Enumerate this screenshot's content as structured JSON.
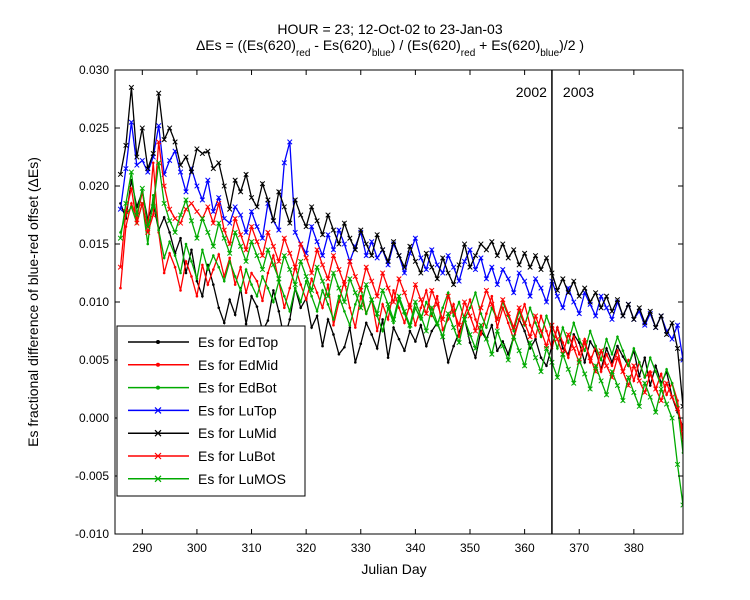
{
  "chart_data": {
    "type": "line",
    "title_line1": "HOUR = 23; 12-Oct-02 to 23-Jan-03",
    "title_line2": {
      "prefix": "ΔEs = ((Es(620)",
      "sub1": "red",
      "mid1": " - Es(620)",
      "sub2": "blue",
      "mid2": ") / (Es(620)",
      "sub3": "red",
      "mid3": " + Es(620)",
      "sub4": "blue",
      "suffix": ")/2  )"
    },
    "xlabel": "Julian Day",
    "ylabel": "Es fractional difference of blue-red offset (ΔEs)",
    "xlim": [
      285,
      389
    ],
    "ylim": [
      -0.01,
      0.03
    ],
    "xticks": [
      290,
      300,
      310,
      320,
      330,
      340,
      350,
      360,
      370,
      380
    ],
    "yticks": [
      -0.01,
      -0.005,
      0.0,
      0.005,
      0.01,
      0.015,
      0.02,
      0.025,
      0.03
    ],
    "ytick_labels": [
      "-0.010",
      "-0.005",
      "0.000",
      "0.005",
      "0.010",
      "0.015",
      "0.020",
      "0.025",
      "0.030"
    ],
    "vline": {
      "x": 365,
      "label_left": "2002",
      "label_right": "2003"
    },
    "legend_position": "lower-left",
    "series": [
      {
        "name": "Es for EdTop",
        "color": "#000000",
        "marker": "dot",
        "values": [
          0.0185,
          0.0172,
          0.0205,
          0.0182,
          0.0195,
          0.0171,
          0.0185,
          0.0162,
          0.0173,
          0.016,
          0.0142,
          0.0155,
          0.0125,
          0.0145,
          0.0118,
          0.0105,
          0.0132,
          0.0115,
          0.0095,
          0.0082,
          0.0102,
          0.0089,
          0.0112,
          0.0081,
          0.0105,
          0.0096,
          0.0075,
          0.0084,
          0.011,
          0.0092,
          0.0068,
          0.0085,
          0.0112,
          0.0095,
          0.0103,
          0.0078,
          0.0088,
          0.0062,
          0.0085,
          0.0072,
          0.0055,
          0.0061,
          0.0078,
          0.0048,
          0.0064,
          0.0082,
          0.0072,
          0.006,
          0.0085,
          0.0052,
          0.0078,
          0.0068,
          0.0058,
          0.0075,
          0.0066,
          0.008,
          0.0062,
          0.0075,
          0.0082,
          0.007,
          0.0048,
          0.0062,
          0.0074,
          0.0086,
          0.0065,
          0.0052,
          0.0075,
          0.0068,
          0.008,
          0.0058,
          0.0066,
          0.0055,
          0.007,
          0.0085,
          0.0075,
          0.006,
          0.0068,
          0.0052,
          0.0045,
          0.0062,
          0.0078,
          0.006,
          0.0055,
          0.0072,
          0.0065,
          0.0048,
          0.0066,
          0.0058,
          0.0042,
          0.006,
          0.0048,
          0.0062,
          0.0053,
          0.0045,
          0.0058,
          0.0036,
          0.0052,
          0.0028,
          0.0045,
          0.003,
          0.004,
          0.0018,
          0.0005,
          -0.0008
        ]
      },
      {
        "name": "Es for EdMid",
        "color": "#ff0000",
        "marker": "dot",
        "values": [
          0.0112,
          0.0165,
          0.0185,
          0.0172,
          0.0195,
          0.0165,
          0.022,
          0.016,
          0.0125,
          0.0142,
          0.013,
          0.011,
          0.0135,
          0.0122,
          0.0105,
          0.0132,
          0.0115,
          0.0128,
          0.0141,
          0.0122,
          0.0138,
          0.0115,
          0.013,
          0.0108,
          0.0125,
          0.0118,
          0.0101,
          0.0125,
          0.014,
          0.0118,
          0.0095,
          0.0112,
          0.013,
          0.0115,
          0.0102,
          0.012,
          0.0108,
          0.0095,
          0.0115,
          0.008,
          0.01,
          0.0118,
          0.0095,
          0.0078,
          0.0105,
          0.009,
          0.0102,
          0.0075,
          0.0098,
          0.0085,
          0.011,
          0.0095,
          0.0082,
          0.0098,
          0.008,
          0.0095,
          0.011,
          0.0088,
          0.0105,
          0.0076,
          0.0085,
          0.0098,
          0.007,
          0.0088,
          0.0102,
          0.0085,
          0.0072,
          0.009,
          0.0105,
          0.0078,
          0.0095,
          0.0082,
          0.0068,
          0.0085,
          0.0098,
          0.008,
          0.007,
          0.0088,
          0.0075,
          0.006,
          0.0078,
          0.0065,
          0.0052,
          0.007,
          0.0055,
          0.0068,
          0.0048,
          0.0062,
          0.004,
          0.0055,
          0.0045,
          0.0058,
          0.004,
          0.005,
          0.0032,
          0.0048,
          0.0035,
          0.004,
          0.0025,
          0.0038,
          0.002,
          0.003,
          0.0015,
          -0.002
        ]
      },
      {
        "name": "Es for EdBot",
        "color": "#00aa00",
        "marker": "dot",
        "values": [
          0.016,
          0.0175,
          0.0182,
          0.0168,
          0.0185,
          0.015,
          0.0192,
          0.0162,
          0.0138,
          0.0152,
          0.014,
          0.0125,
          0.015,
          0.0135,
          0.012,
          0.0145,
          0.0128,
          0.014,
          0.013,
          0.0118,
          0.0135,
          0.0122,
          0.011,
          0.0128,
          0.0115,
          0.0105,
          0.0122,
          0.0112,
          0.01,
          0.0118,
          0.0105,
          0.0092,
          0.0112,
          0.01,
          0.0118,
          0.0105,
          0.0092,
          0.011,
          0.0098,
          0.0085,
          0.0105,
          0.0092,
          0.008,
          0.0098,
          0.0112,
          0.009,
          0.0102,
          0.0088,
          0.0075,
          0.0095,
          0.0082,
          0.0102,
          0.009,
          0.0078,
          0.0095,
          0.0085,
          0.01,
          0.009,
          0.008,
          0.0095,
          0.0108,
          0.0088,
          0.01,
          0.0085,
          0.0095,
          0.0108,
          0.009,
          0.0078,
          0.0095,
          0.0085,
          0.01,
          0.0088,
          0.0075,
          0.0092,
          0.008,
          0.0095,
          0.0082,
          0.007,
          0.0088,
          0.0075,
          0.006,
          0.0078,
          0.0065,
          0.0082,
          0.0068,
          0.0058,
          0.0075,
          0.0062,
          0.005,
          0.0068,
          0.0055,
          0.007,
          0.0058,
          0.0045,
          0.006,
          0.0048,
          0.0035,
          0.0052,
          0.004,
          0.0028,
          0.0042,
          0.003,
          0.001,
          -0.003
        ]
      },
      {
        "name": "Es for LuTop",
        "color": "#0000ff",
        "marker": "x",
        "values": [
          0.018,
          0.0215,
          0.0255,
          0.0218,
          0.0222,
          0.0212,
          0.0225,
          0.0252,
          0.021,
          0.0222,
          0.023,
          0.0212,
          0.0195,
          0.0215,
          0.02,
          0.0188,
          0.0205,
          0.0178,
          0.019,
          0.0172,
          0.0168,
          0.0182,
          0.0175,
          0.016,
          0.0178,
          0.0165,
          0.0155,
          0.0185,
          0.017,
          0.0162,
          0.022,
          0.0238,
          0.016,
          0.015,
          0.0142,
          0.0165,
          0.0152,
          0.014,
          0.0158,
          0.0145,
          0.0162,
          0.015,
          0.0135,
          0.0148,
          0.016,
          0.014,
          0.0152,
          0.0138,
          0.0145,
          0.0132,
          0.015,
          0.014,
          0.0125,
          0.0142,
          0.0155,
          0.0138,
          0.0128,
          0.0145,
          0.0132,
          0.0125,
          0.014,
          0.013,
          0.0118,
          0.0135,
          0.0145,
          0.0128,
          0.0138,
          0.012,
          0.013,
          0.0115,
          0.0128,
          0.012,
          0.0108,
          0.0125,
          0.0118,
          0.0105,
          0.012,
          0.0112,
          0.01,
          0.0118,
          0.0105,
          0.0095,
          0.0112,
          0.01,
          0.009,
          0.0108,
          0.0098,
          0.0088,
          0.0105,
          0.0095,
          0.0085,
          0.01,
          0.0088,
          0.0098,
          0.0085,
          0.0092,
          0.008,
          0.009,
          0.0078,
          0.0088,
          0.0075,
          0.0068,
          0.008,
          0.005
        ]
      },
      {
        "name": "Es for LuMid",
        "color": "#000000",
        "marker": "x",
        "values": [
          0.021,
          0.0235,
          0.0285,
          0.0225,
          0.025,
          0.0215,
          0.0228,
          0.028,
          0.024,
          0.025,
          0.0238,
          0.0218,
          0.0225,
          0.0212,
          0.0232,
          0.0228,
          0.023,
          0.0215,
          0.022,
          0.02,
          0.018,
          0.0205,
          0.0195,
          0.021,
          0.019,
          0.0182,
          0.0202,
          0.0188,
          0.017,
          0.0195,
          0.0182,
          0.0168,
          0.0188,
          0.0175,
          0.0165,
          0.0182,
          0.017,
          0.0158,
          0.0175,
          0.0162,
          0.015,
          0.0168,
          0.0155,
          0.0145,
          0.0162,
          0.015,
          0.014,
          0.0158,
          0.0145,
          0.0135,
          0.0152,
          0.014,
          0.013,
          0.0148,
          0.0135,
          0.0125,
          0.0142,
          0.013,
          0.012,
          0.0138,
          0.0125,
          0.0115,
          0.0132,
          0.015,
          0.013,
          0.014,
          0.015,
          0.0145,
          0.0152,
          0.014,
          0.015,
          0.0138,
          0.0145,
          0.0132,
          0.0142,
          0.013,
          0.014,
          0.0128,
          0.0138,
          0.0125,
          0.011,
          0.012,
          0.0108,
          0.0118,
          0.0105,
          0.0112,
          0.01,
          0.0108,
          0.0095,
          0.0105,
          0.0092,
          0.0102,
          0.0088,
          0.0098,
          0.0085,
          0.0095,
          0.0082,
          0.0092,
          0.0078,
          0.0088,
          0.0072,
          0.0082,
          0.006,
          0.001
        ]
      },
      {
        "name": "Es for LuBot",
        "color": "#ff0000",
        "marker": "x",
        "values": [
          0.013,
          0.0178,
          0.0198,
          0.0168,
          0.0185,
          0.016,
          0.0175,
          0.0238,
          0.02,
          0.018,
          0.0172,
          0.0168,
          0.018,
          0.0185,
          0.0178,
          0.0172,
          0.0182,
          0.0168,
          0.0185,
          0.0162,
          0.015,
          0.0172,
          0.0158,
          0.0145,
          0.0165,
          0.0152,
          0.014,
          0.016,
          0.0148,
          0.0135,
          0.0155,
          0.0142,
          0.013,
          0.015,
          0.0138,
          0.0125,
          0.0145,
          0.0132,
          0.012,
          0.014,
          0.0128,
          0.0115,
          0.0135,
          0.0122,
          0.011,
          0.013,
          0.0118,
          0.0105,
          0.0125,
          0.0112,
          0.01,
          0.012,
          0.0108,
          0.0095,
          0.0115,
          0.0102,
          0.009,
          0.011,
          0.0098,
          0.0085,
          0.0105,
          0.0092,
          0.008,
          0.01,
          0.0088,
          0.0075,
          0.0095,
          0.011,
          0.0098,
          0.0085,
          0.0102,
          0.009,
          0.0078,
          0.0095,
          0.0082,
          0.007,
          0.0088,
          0.0075,
          0.0062,
          0.008,
          0.0068,
          0.0055,
          0.0072,
          0.006,
          0.0048,
          0.0065,
          0.0052,
          0.004,
          0.0058,
          0.0045,
          0.0035,
          0.0052,
          0.004,
          0.0028,
          0.0045,
          0.0032,
          0.0022,
          0.0038,
          0.0025,
          0.0015,
          0.003,
          0.0018,
          0.0008,
          -0.001
        ]
      },
      {
        "name": "Es for LuMOS",
        "color": "#00aa00",
        "marker": "x",
        "values": [
          0.0155,
          0.0185,
          0.0212,
          0.0175,
          0.0198,
          0.0165,
          0.0182,
          0.022,
          0.0185,
          0.017,
          0.016,
          0.0175,
          0.0188,
          0.017,
          0.0155,
          0.0172,
          0.016,
          0.0148,
          0.0168,
          0.0155,
          0.0142,
          0.016,
          0.0148,
          0.0135,
          0.0152,
          0.014,
          0.0128,
          0.0145,
          0.0132,
          0.012,
          0.014,
          0.0128,
          0.0115,
          0.0135,
          0.0122,
          0.011,
          0.013,
          0.0118,
          0.0105,
          0.0125,
          0.0112,
          0.01,
          0.012,
          0.0108,
          0.0095,
          0.0115,
          0.0102,
          0.009,
          0.011,
          0.0098,
          0.0085,
          0.0105,
          0.0092,
          0.008,
          0.01,
          0.0088,
          0.0075,
          0.0095,
          0.0082,
          0.007,
          0.009,
          0.0078,
          0.0065,
          0.0085,
          0.0072,
          0.006,
          0.008,
          0.0068,
          0.0055,
          0.0075,
          0.0062,
          0.005,
          0.007,
          0.0058,
          0.0045,
          0.0065,
          0.0052,
          0.004,
          0.006,
          0.0048,
          0.0035,
          0.0055,
          0.0042,
          0.003,
          0.005,
          0.0038,
          0.0025,
          0.0045,
          0.0032,
          0.002,
          0.004,
          0.0028,
          0.0015,
          0.0035,
          0.0022,
          0.001,
          0.003,
          0.0018,
          0.0005,
          0.0025,
          0.0012,
          0.0,
          -0.004,
          -0.0075
        ]
      }
    ]
  }
}
